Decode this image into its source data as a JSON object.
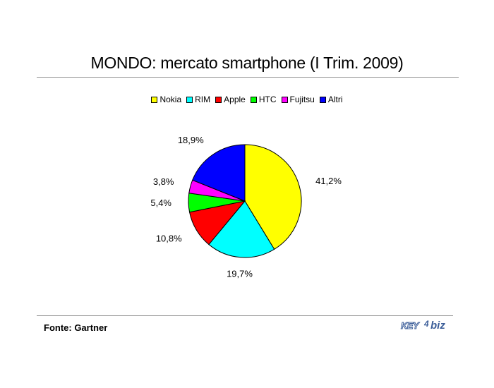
{
  "title": "MONDO: mercato smartphone (I Trim. 2009)",
  "source": "Fonte: Gartner",
  "logo": {
    "key": "KEY",
    "num": "4",
    "biz": "biz"
  },
  "chart_data": {
    "type": "pie",
    "title": "MONDO: mercato smartphone (I Trim. 2009)",
    "legend_position": "top",
    "slices": [
      {
        "name": "Nokia",
        "value": 41.2,
        "label": "41,2%",
        "color": "#ffff00"
      },
      {
        "name": "RIM",
        "value": 19.7,
        "label": "19,7%",
        "color": "#00ffff"
      },
      {
        "name": "Apple",
        "value": 10.8,
        "label": "10,8%",
        "color": "#ff0000"
      },
      {
        "name": "HTC",
        "value": 5.4,
        "label": "5,4%",
        "color": "#00ff00"
      },
      {
        "name": "Fujitsu",
        "value": 3.8,
        "label": "3,8%",
        "color": "#ff00ff"
      },
      {
        "name": "Altri",
        "value": 18.9,
        "label": "18,9%",
        "color": "#0000ff"
      }
    ]
  }
}
